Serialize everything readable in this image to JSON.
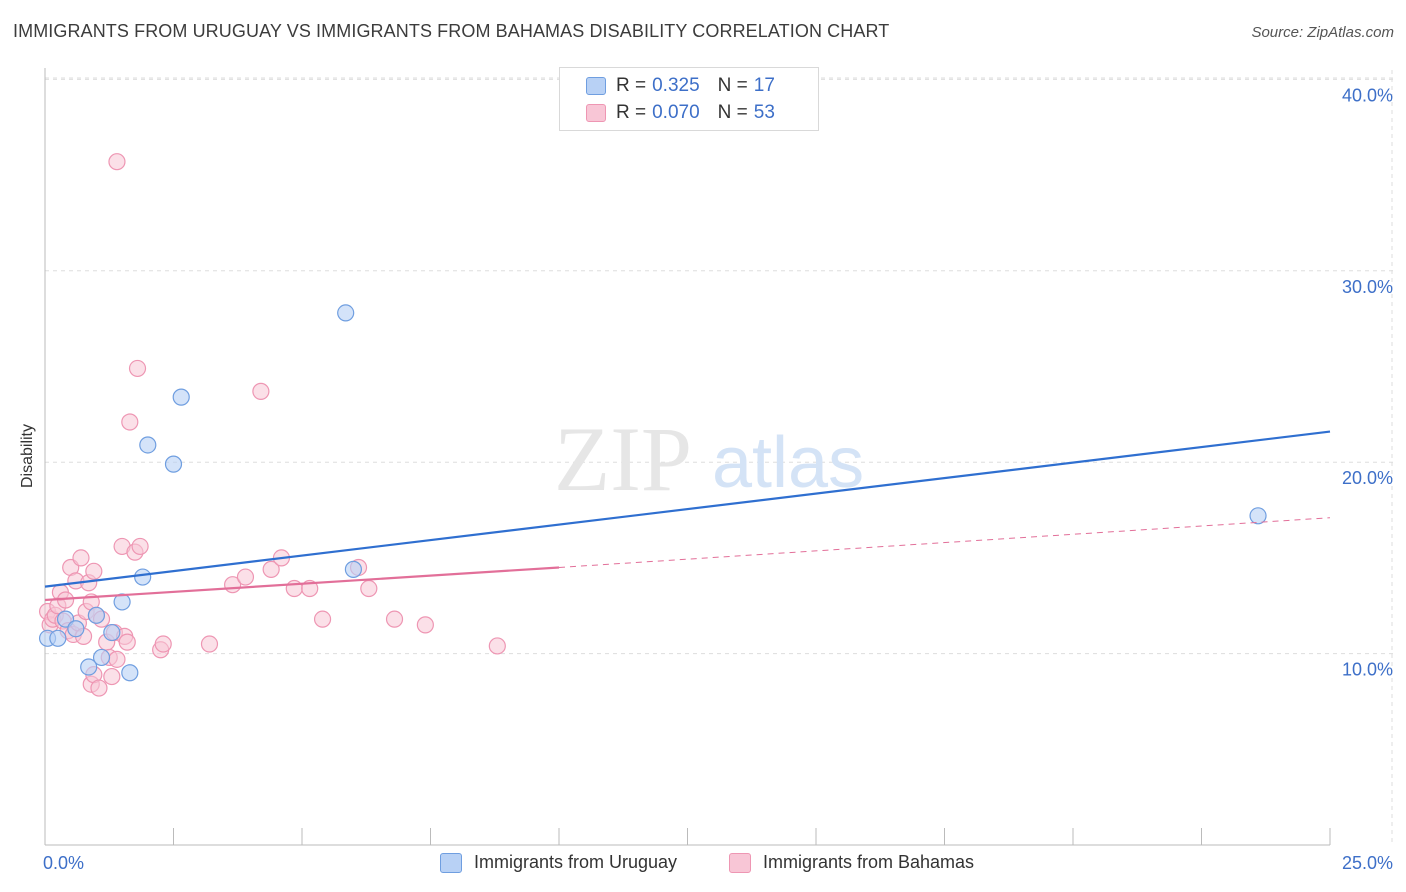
{
  "header": {
    "title": "IMMIGRANTS FROM URUGUAY VS IMMIGRANTS FROM BAHAMAS DISABILITY CORRELATION CHART",
    "source": "Source: ZipAtlas.com"
  },
  "legend": {
    "rows": [
      {
        "r_label": "R =",
        "r_value": "0.325",
        "n_label": "N =",
        "n_value": "17"
      },
      {
        "r_label": "R =",
        "r_value": "0.070",
        "n_label": "N =",
        "n_value": "53"
      }
    ]
  },
  "watermark": {
    "zip": "ZIP",
    "atlas": "atlas"
  },
  "colors": {
    "uruguay_fill": "#b8d1f5",
    "uruguay_stroke": "#6f9ee0",
    "uruguay_line": "#2f6fd0",
    "bahamas_fill": "#f8c6d6",
    "bahamas_stroke": "#ee96b3",
    "bahamas_line": "#e26f99",
    "axis_text": "#3d6fc8",
    "grid": "#dddddd"
  },
  "chart_data": {
    "type": "scatter",
    "title": "IMMIGRANTS FROM URUGUAY VS IMMIGRANTS FROM BAHAMAS DISABILITY CORRELATION CHART",
    "xlabel": "",
    "ylabel": "Disability",
    "xlim": [
      0,
      25
    ],
    "ylim": [
      0,
      42
    ],
    "x_tick_labels": [
      "0.0%",
      "25.0%"
    ],
    "y_ticks": [
      10,
      20,
      30,
      40
    ],
    "y_tick_labels": [
      "10.0%",
      "20.0%",
      "30.0%",
      "40.0%"
    ],
    "grid": true,
    "legend_position": "top-center",
    "series": [
      {
        "name": "Immigrants from Uruguay",
        "points": [
          [
            0.05,
            10.8
          ],
          [
            0.25,
            10.8
          ],
          [
            0.4,
            11.8
          ],
          [
            0.6,
            11.3
          ],
          [
            0.85,
            9.3
          ],
          [
            1.0,
            12.0
          ],
          [
            1.1,
            9.8
          ],
          [
            1.3,
            11.1
          ],
          [
            1.5,
            12.7
          ],
          [
            1.65,
            9.0
          ],
          [
            1.9,
            14.0
          ],
          [
            2.0,
            20.9
          ],
          [
            2.5,
            19.9
          ],
          [
            2.65,
            23.4
          ],
          [
            5.85,
            27.8
          ],
          [
            6.0,
            14.4
          ],
          [
            23.6,
            17.2
          ]
        ],
        "trend": {
          "x": [
            0,
            25
          ],
          "y": [
            13.5,
            21.6
          ],
          "style": "solid"
        }
      },
      {
        "name": "Immigrants from Bahamas",
        "points": [
          [
            0.05,
            12.2
          ],
          [
            0.1,
            11.5
          ],
          [
            0.15,
            11.8
          ],
          [
            0.2,
            12.0
          ],
          [
            0.25,
            12.5
          ],
          [
            0.3,
            13.2
          ],
          [
            0.35,
            11.7
          ],
          [
            0.4,
            12.8
          ],
          [
            0.45,
            11.2
          ],
          [
            0.5,
            14.5
          ],
          [
            0.55,
            11.0
          ],
          [
            0.6,
            13.8
          ],
          [
            0.65,
            11.6
          ],
          [
            0.7,
            15.0
          ],
          [
            0.75,
            10.9
          ],
          [
            0.8,
            12.2
          ],
          [
            0.85,
            13.7
          ],
          [
            0.9,
            12.7
          ],
          [
            0.95,
            14.3
          ],
          [
            1.0,
            12.0
          ],
          [
            0.9,
            8.4
          ],
          [
            0.95,
            8.9
          ],
          [
            1.05,
            8.2
          ],
          [
            1.1,
            11.8
          ],
          [
            1.2,
            10.6
          ],
          [
            1.25,
            9.8
          ],
          [
            1.3,
            8.8
          ],
          [
            1.35,
            11.1
          ],
          [
            1.4,
            9.7
          ],
          [
            1.5,
            15.6
          ],
          [
            1.55,
            10.9
          ],
          [
            1.6,
            10.6
          ],
          [
            1.65,
            22.1
          ],
          [
            1.75,
            15.3
          ],
          [
            1.8,
            24.9
          ],
          [
            1.85,
            15.6
          ],
          [
            1.4,
            35.7
          ],
          [
            2.25,
            10.2
          ],
          [
            2.3,
            10.5
          ],
          [
            3.2,
            10.5
          ],
          [
            3.65,
            13.6
          ],
          [
            3.9,
            14.0
          ],
          [
            4.2,
            23.7
          ],
          [
            4.4,
            14.4
          ],
          [
            4.6,
            15.0
          ],
          [
            4.85,
            13.4
          ],
          [
            5.15,
            13.4
          ],
          [
            5.4,
            11.8
          ],
          [
            6.1,
            14.5
          ],
          [
            6.3,
            13.4
          ],
          [
            6.8,
            11.8
          ],
          [
            7.4,
            11.5
          ],
          [
            8.8,
            10.4
          ]
        ],
        "trend": {
          "x": [
            0,
            10
          ],
          "y": [
            12.8,
            14.5
          ],
          "style": "solid"
        },
        "trend_extended": {
          "x": [
            10,
            25
          ],
          "y": [
            14.5,
            17.1
          ],
          "style": "dashed"
        }
      }
    ]
  },
  "bottom_legend": [
    {
      "label": "Immigrants from Uruguay"
    },
    {
      "label": "Immigrants from Bahamas"
    }
  ]
}
